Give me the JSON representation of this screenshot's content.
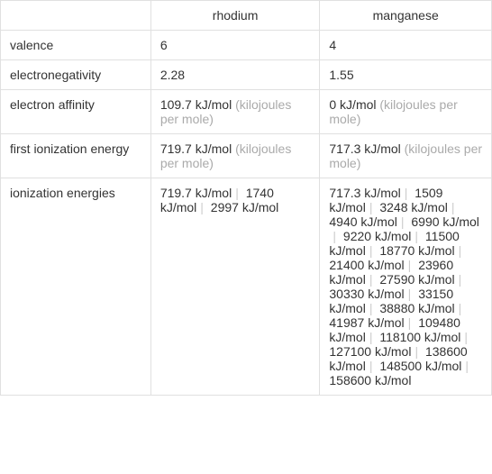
{
  "headers": {
    "rhodium": "rhodium",
    "manganese": "manganese"
  },
  "rows": {
    "valence": {
      "label": "valence",
      "rhodium": "6",
      "manganese": "4"
    },
    "electronegativity": {
      "label": "electronegativity",
      "rhodium": "2.28",
      "manganese": "1.55"
    },
    "electron_affinity": {
      "label": "electron affinity",
      "rhodium_value": "109.7 kJ/mol",
      "rhodium_unit": "(kilojoules per mole)",
      "manganese_value": "0 kJ/mol",
      "manganese_unit": "(kilojoules per mole)"
    },
    "first_ionization": {
      "label": "first ionization energy",
      "rhodium_value": "719.7 kJ/mol",
      "rhodium_unit": "(kilojoules per mole)",
      "manganese_value": "717.3 kJ/mol",
      "manganese_unit": "(kilojoules per mole)"
    },
    "ionization_energies": {
      "label": "ionization energies",
      "rhodium_list": [
        "719.7 kJ/mol",
        "1740 kJ/mol",
        "2997 kJ/mol"
      ],
      "manganese_list": [
        "717.3 kJ/mol",
        "1509 kJ/mol",
        "3248 kJ/mol",
        "4940 kJ/mol",
        "6990 kJ/mol",
        "9220 kJ/mol",
        "11500 kJ/mol",
        "18770 kJ/mol",
        "21400 kJ/mol",
        "23960 kJ/mol",
        "27590 kJ/mol",
        "30330 kJ/mol",
        "33150 kJ/mol",
        "38880 kJ/mol",
        "41987 kJ/mol",
        "109480 kJ/mol",
        "118100 kJ/mol",
        "127100 kJ/mol",
        "138600 kJ/mol",
        "148500 kJ/mol",
        "158600 kJ/mol"
      ]
    }
  },
  "separator": "|"
}
